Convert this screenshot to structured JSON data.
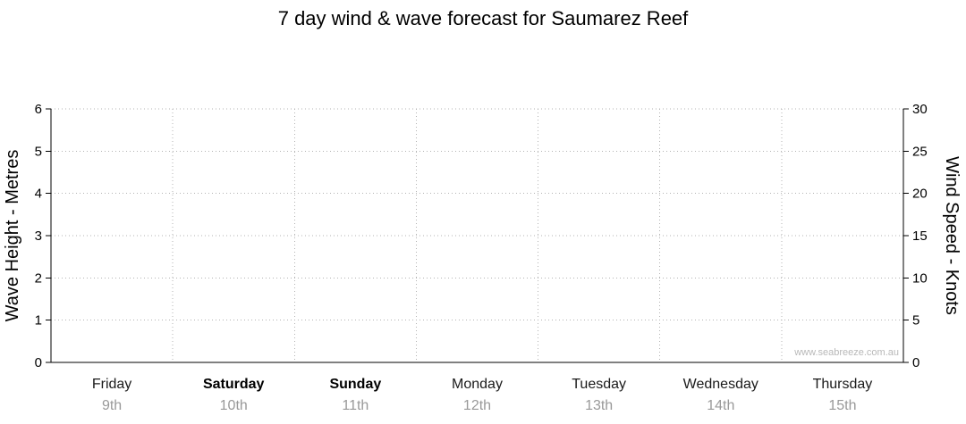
{
  "chart_data": {
    "type": "line",
    "title": "7 day wind & wave forecast for Saumarez Reef",
    "x_categories": [
      {
        "day": "Friday",
        "date": "9th",
        "weekend": false
      },
      {
        "day": "Saturday",
        "date": "10th",
        "weekend": true
      },
      {
        "day": "Sunday",
        "date": "11th",
        "weekend": true
      },
      {
        "day": "Monday",
        "date": "12th",
        "weekend": false
      },
      {
        "day": "Tuesday",
        "date": "13th",
        "weekend": false
      },
      {
        "day": "Wednesday",
        "date": "14th",
        "weekend": false
      },
      {
        "day": "Thursday",
        "date": "15th",
        "weekend": false
      }
    ],
    "left_axis": {
      "label": "Wave Height - Metres",
      "min": 0,
      "max": 6,
      "tick_step": 1,
      "ticks": [
        0,
        1,
        2,
        3,
        4,
        5,
        6
      ]
    },
    "right_axis": {
      "label": "Wind Speed - Knots",
      "min": 0,
      "max": 30,
      "tick_step": 5,
      "ticks": [
        0,
        5,
        10,
        15,
        20,
        25,
        30
      ]
    },
    "series": [],
    "grid": "dotted",
    "grid_color": "#b3b3b3",
    "axis_color": "#000000",
    "weekend_label_style": "bold",
    "watermark": "www.seabreeze.com.au"
  }
}
